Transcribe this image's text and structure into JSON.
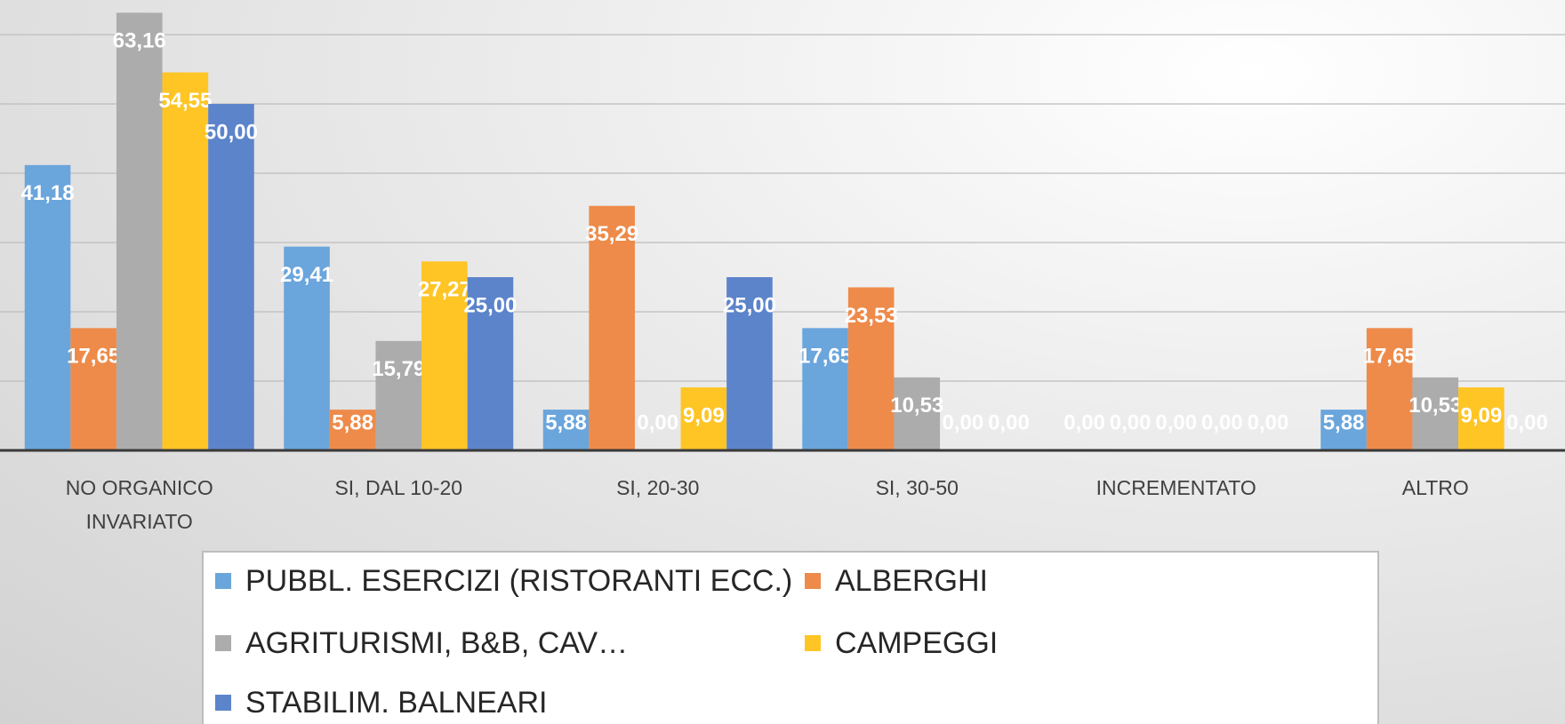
{
  "chart_data": {
    "type": "bar",
    "categories": [
      "NO ORGANICO INVARIATO",
      "SI, DAL 10-20",
      "SI, 20-30",
      "SI, 30-50",
      "INCREMENTATO",
      "ALTRO"
    ],
    "series": [
      {
        "name": "PUBBL. ESERCIZI (RISTORANTI ECC.)",
        "color": "#6aa5dc",
        "values": [
          41.18,
          29.41,
          5.88,
          17.65,
          0,
          5.88
        ],
        "value_labels": [
          "41,18",
          "29,41",
          "5,88",
          "17,65",
          "0,00",
          "5,88"
        ]
      },
      {
        "name": "ALBERGHI",
        "color": "#ee8b4a",
        "values": [
          17.65,
          5.88,
          35.29,
          23.53,
          0,
          17.65
        ],
        "value_labels": [
          "17,65",
          "5,88",
          "35,29",
          "23,53",
          "0,00",
          "17,65"
        ]
      },
      {
        "name": "AGRITURISMI, B&B, CAV…",
        "color": "#acacac",
        "values": [
          63.16,
          15.79,
          0,
          10.53,
          0,
          10.53
        ],
        "value_labels": [
          "63,16",
          "15,79",
          "0,00",
          "10,53",
          "0,00",
          "10,53"
        ]
      },
      {
        "name": "CAMPEGGI",
        "color": "#fec525",
        "values": [
          54.55,
          27.27,
          9.09,
          0,
          0,
          9.09
        ],
        "value_labels": [
          "54,55",
          "27,27",
          "9,09",
          "0,00",
          "0,00",
          "9,09"
        ]
      },
      {
        "name": "STABILIM. BALNEARI",
        "color": "#5c84cb",
        "values": [
          50,
          25,
          25,
          0,
          0,
          0
        ],
        "value_labels": [
          "50,00",
          "25,00",
          "25,00",
          "0,00",
          "0,00",
          "0,00"
        ]
      }
    ],
    "ylim": [
      0,
      65
    ],
    "yticks": [
      0,
      10,
      20,
      30,
      40,
      50,
      60
    ],
    "grid": true
  }
}
